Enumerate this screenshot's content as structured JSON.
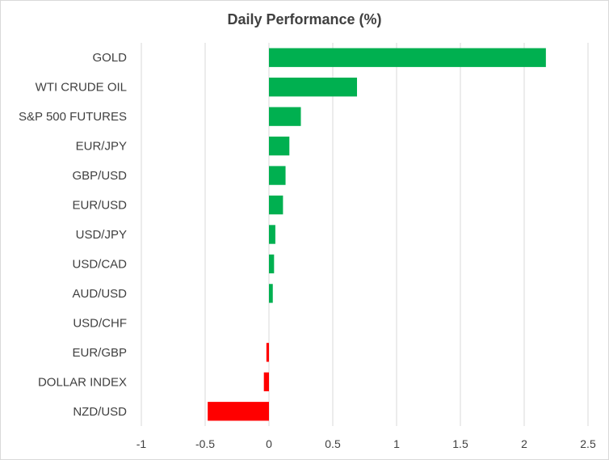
{
  "chart_data": {
    "type": "bar",
    "orientation": "horizontal",
    "title": "Daily Performance (%)",
    "categories": [
      "GOLD",
      "WTI CRUDE OIL",
      "S&P 500 FUTURES",
      "EUR/JPY",
      "GBP/USD",
      "EUR/USD",
      "USD/JPY",
      "USD/CAD",
      "AUD/USD",
      "USD/CHF",
      "EUR/GBP",
      "DOLLAR INDEX",
      "NZD/USD"
    ],
    "values": [
      2.17,
      0.69,
      0.25,
      0.16,
      0.13,
      0.11,
      0.05,
      0.04,
      0.03,
      0.0,
      -0.02,
      -0.04,
      -0.48
    ],
    "xlim": [
      -1,
      2.5
    ],
    "xticks": [
      "-1",
      "-0.5",
      "0",
      "0.5",
      "1",
      "1.5",
      "2",
      "2.5"
    ],
    "xtick_values": [
      -1,
      -0.5,
      0,
      0.5,
      1,
      1.5,
      2,
      2.5
    ],
    "grid": "vertical",
    "legend": "none",
    "colors": {
      "positive": "#00b050",
      "negative": "#ff0000",
      "grid": "#d9d9d9",
      "text": "#404040"
    }
  }
}
